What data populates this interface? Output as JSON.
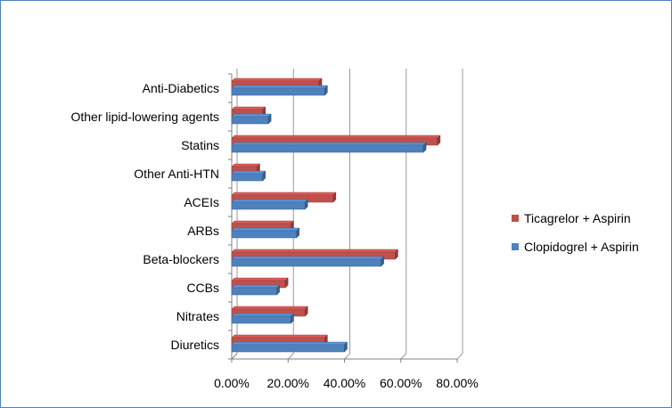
{
  "chart_data": {
    "type": "bar",
    "orientation": "horizontal",
    "style": "3d-clustered-bar",
    "title": "",
    "xlabel": "",
    "ylabel": "",
    "categories": [
      "Anti-Diabetics",
      "Other lipid-lowering agents",
      "Statins",
      "Other Anti-HTN",
      "ACEIs",
      "ARBs",
      "Beta-blockers",
      "CCBs",
      "Nitrates",
      "Diuretics"
    ],
    "series": [
      {
        "name": "Ticagrelor + Aspirin",
        "color": "#c0504d",
        "values": [
          31,
          11,
          73,
          9,
          36,
          21,
          58,
          19,
          26,
          33
        ]
      },
      {
        "name": "Clopidogrel + Aspirin",
        "color": "#4f81bd",
        "values": [
          33,
          13,
          68,
          11,
          26,
          23,
          53,
          16,
          21,
          40
        ]
      }
    ],
    "x_ticks": [
      "0.00%",
      "20.00%",
      "40.00%",
      "60.00%",
      "80.00%"
    ],
    "xlim": [
      0,
      80
    ],
    "grid": true,
    "legend_position": "right"
  }
}
